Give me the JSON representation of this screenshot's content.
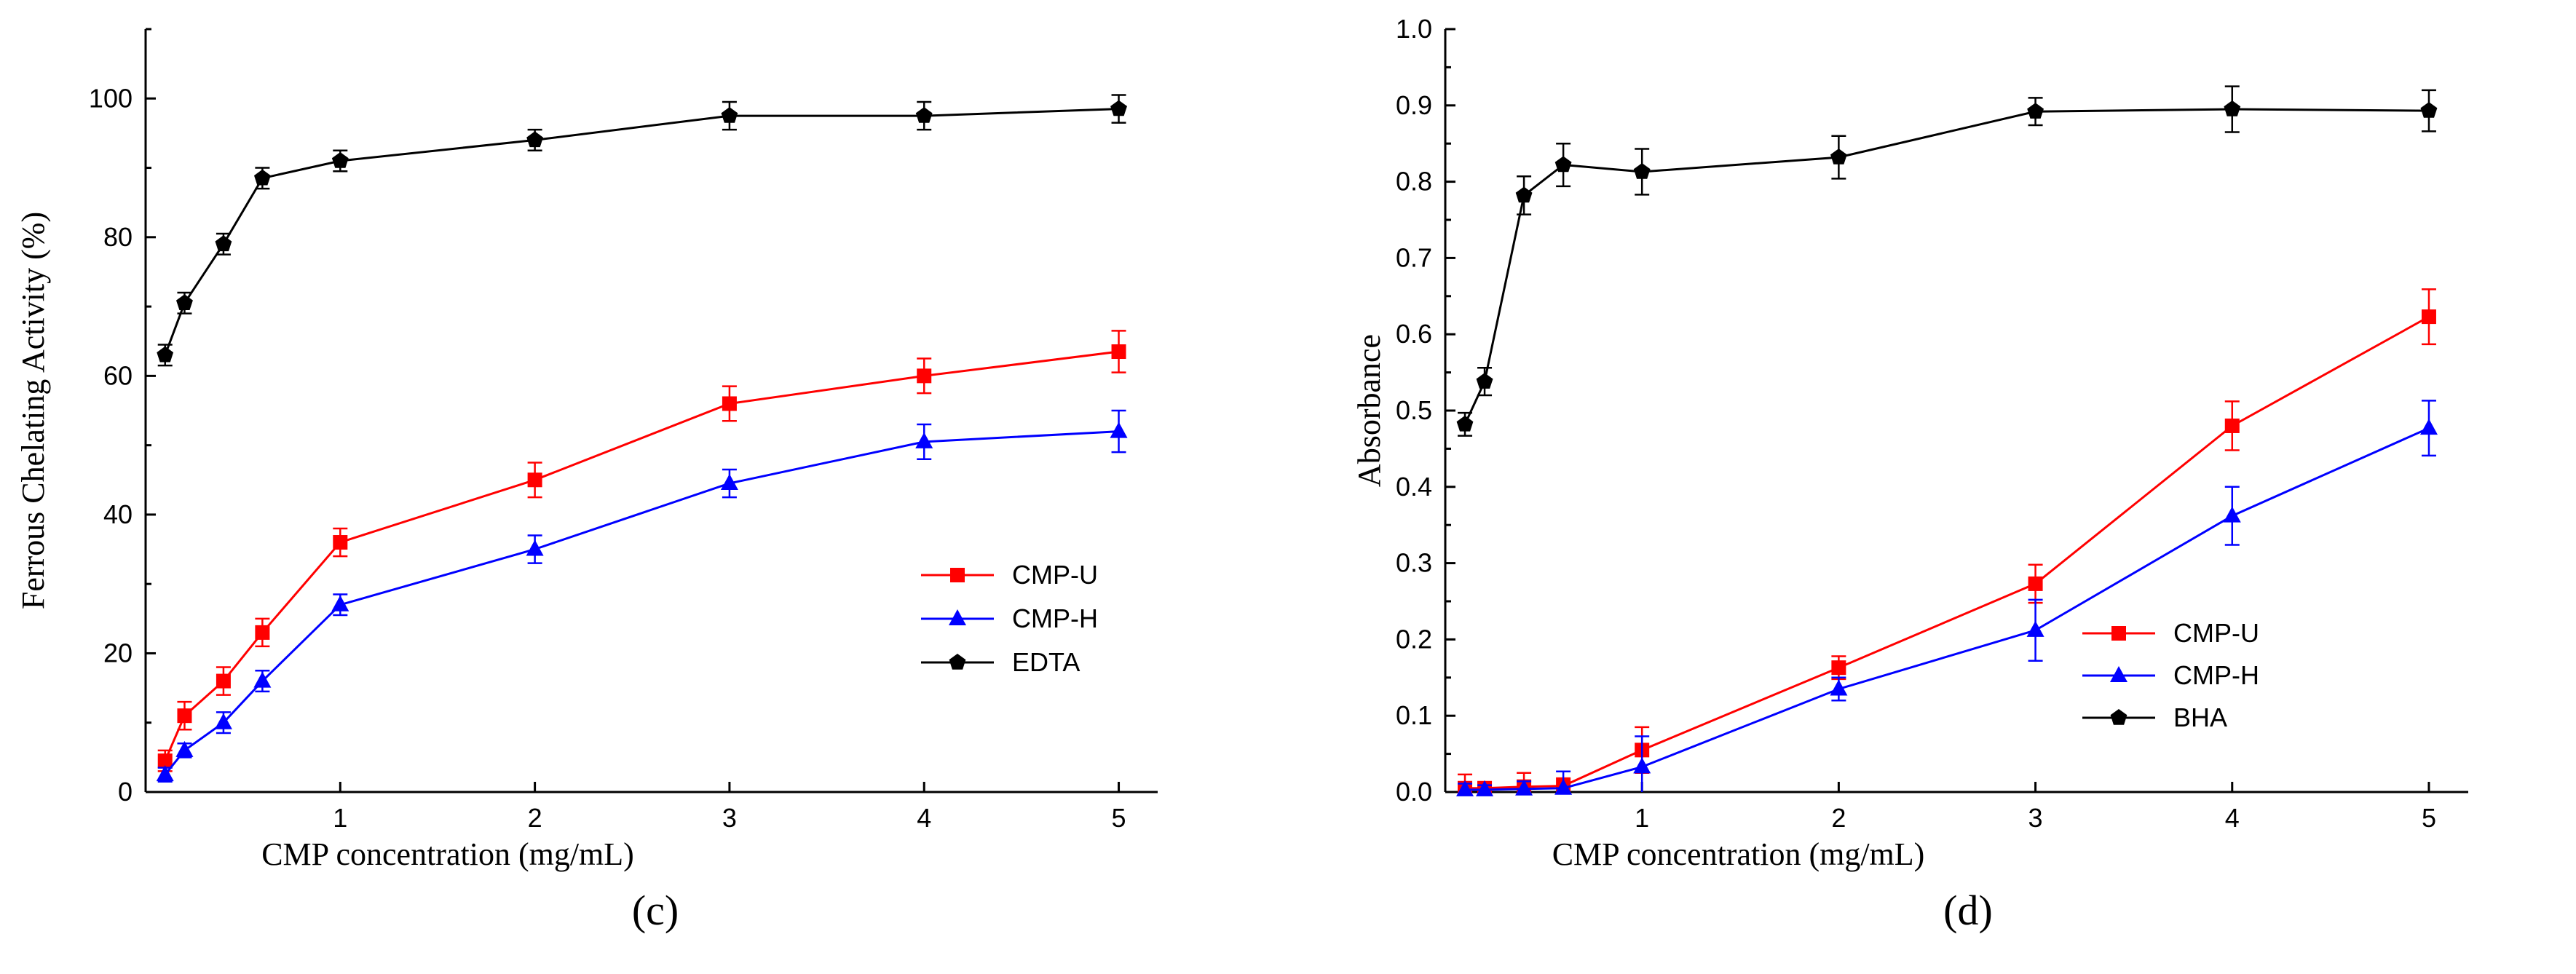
{
  "chart_data": [
    {
      "type": "line",
      "panel": "(c)",
      "xlabel": "CMP concentration (mg/mL)",
      "ylabel": "Ferrous Chelating Activity (%)",
      "xlim": [
        0,
        5.2
      ],
      "ylim": [
        0,
        110
      ],
      "xticks": [
        1,
        2,
        3,
        4,
        5
      ],
      "yticks": [
        0,
        20,
        40,
        60,
        80,
        100
      ],
      "x": [
        0.1,
        0.2,
        0.4,
        0.6,
        1,
        2,
        3,
        4,
        5
      ],
      "legend_position": "center-right",
      "series": [
        {
          "name": "CMP-U",
          "color": "#ff0000",
          "marker": "square",
          "values": [
            4.5,
            11,
            16,
            23,
            36,
            45,
            56,
            60,
            63.5
          ],
          "errors": [
            1.5,
            2,
            2,
            2,
            2,
            2.5,
            2.5,
            2.5,
            3
          ]
        },
        {
          "name": "CMP-H",
          "color": "#0000ff",
          "marker": "triangle",
          "values": [
            2.5,
            6,
            10,
            16,
            27,
            35,
            44.5,
            50.5,
            52
          ],
          "errors": [
            1,
            1,
            1.5,
            1.5,
            1.5,
            2,
            2,
            2.5,
            3
          ]
        },
        {
          "name": "EDTA",
          "color": "#000000",
          "marker": "pentagon",
          "values": [
            63,
            70.5,
            79,
            88.5,
            91,
            94,
            97.5,
            97.5,
            98.5
          ],
          "errors": [
            1.5,
            1.5,
            1.5,
            1.5,
            1.5,
            1.5,
            2,
            2,
            2
          ]
        }
      ]
    },
    {
      "type": "line",
      "panel": "(d)",
      "xlabel": "CMP concentration (mg/mL)",
      "ylabel": "Absorbance",
      "xlim": [
        0,
        5.2
      ],
      "ylim": [
        0,
        1.0
      ],
      "xticks": [
        1,
        2,
        3,
        4,
        5
      ],
      "yticks": [
        0.0,
        0.1,
        0.2,
        0.3,
        0.4,
        0.5,
        0.6,
        0.7,
        0.8,
        0.9,
        1.0
      ],
      "x": [
        0.1,
        0.2,
        0.4,
        0.6,
        1,
        2,
        3,
        4,
        5
      ],
      "legend_position": "bottom-right",
      "series": [
        {
          "name": "CMP-U",
          "color": "#ff0000",
          "marker": "square",
          "values": [
            0.005,
            0.005,
            0.007,
            0.008,
            0.055,
            0.163,
            0.273,
            0.48,
            0.623
          ],
          "errors": [
            0.018,
            0.008,
            0.018,
            0.01,
            0.03,
            0.015,
            0.025,
            0.032,
            0.036
          ]
        },
        {
          "name": "CMP-H",
          "color": "#0000ff",
          "marker": "triangle",
          "values": [
            0.003,
            0.003,
            0.004,
            0.005,
            0.033,
            0.135,
            0.212,
            0.362,
            0.477
          ],
          "errors": [
            0.008,
            0.006,
            0.01,
            0.022,
            0.04,
            0.015,
            0.04,
            0.038,
            0.036
          ]
        },
        {
          "name": "BHA",
          "color": "#000000",
          "marker": "pentagon",
          "values": [
            0.482,
            0.538,
            0.782,
            0.822,
            0.813,
            0.832,
            0.892,
            0.895,
            0.893
          ],
          "errors": [
            0.015,
            0.018,
            0.025,
            0.028,
            0.03,
            0.028,
            0.018,
            0.03,
            0.027
          ]
        }
      ]
    }
  ]
}
